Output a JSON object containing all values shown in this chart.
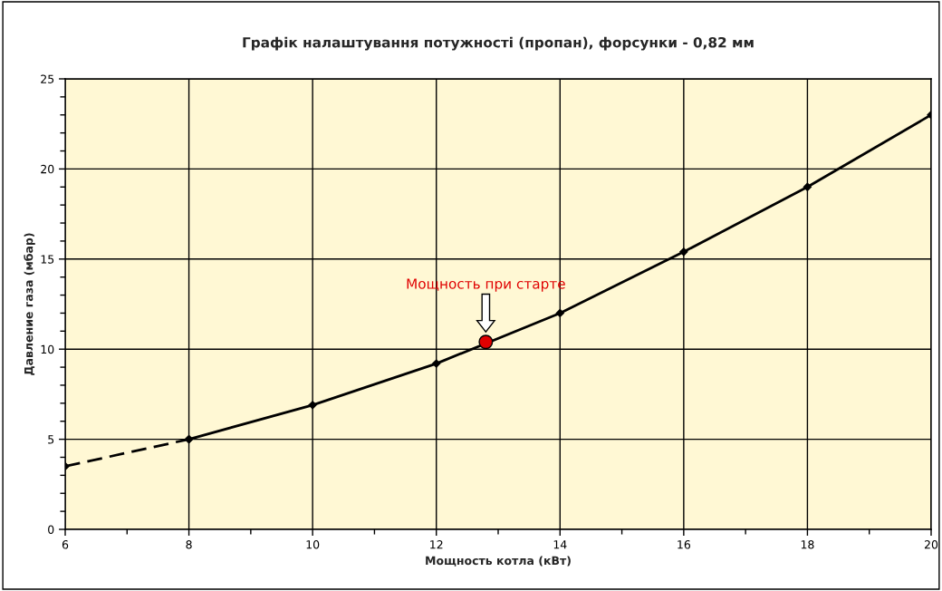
{
  "chart_data": {
    "type": "line",
    "title": "Графік налаштування потужності (пропан), форсунки - 0,82 мм",
    "xlabel": "Мощность котла (кВт)",
    "ylabel": "Давление газа (мбар)",
    "series": [
      {
        "color": "#000000",
        "x": [
          6,
          8
        ],
        "values": [
          3.5,
          5.0
        ],
        "line_style": "dashed",
        "marker": "diamond"
      },
      {
        "color": "#000000",
        "x": [
          8,
          10,
          12,
          14,
          16,
          18,
          20
        ],
        "values": [
          5.0,
          6.9,
          9.2,
          12.0,
          15.4,
          19.0,
          23.0
        ],
        "line_style": "solid",
        "marker": "diamond"
      },
      {
        "type": "scatter",
        "color": "#e00000",
        "x": [
          12.8
        ],
        "values": [
          10.4
        ],
        "marker": "circle"
      }
    ],
    "annotations": [
      "Мощность при старте"
    ],
    "xlim": [
      6,
      20
    ],
    "ylim": [
      0,
      25
    ],
    "xticks": [
      6,
      {
        "value": 7,
        "label": null
      },
      8,
      {
        "value": 9,
        "label": null
      },
      10,
      {
        "value": 11,
        "label": null
      },
      12,
      {
        "value": 13,
        "label": null
      },
      14,
      {
        "value": 15,
        "label": null
      },
      16,
      {
        "value": 17,
        "label": null
      },
      18,
      {
        "value": 19,
        "label": null
      },
      20
    ],
    "yticks": [
      0,
      {
        "value": 1,
        "label": null
      },
      {
        "value": 2,
        "label": null
      },
      {
        "value": 3,
        "label": null
      },
      {
        "value": 4,
        "label": null
      },
      5,
      {
        "value": 6,
        "label": null
      },
      {
        "value": 7,
        "label": null
      },
      {
        "value": 8,
        "label": null
      },
      {
        "value": 9,
        "label": null
      },
      10,
      {
        "value": 11,
        "label": null
      },
      {
        "value": 12,
        "label": null
      },
      {
        "value": 13,
        "label": null
      },
      {
        "value": 14,
        "label": null
      },
      15,
      {
        "value": 16,
        "label": null
      },
      {
        "value": 17,
        "label": null
      },
      {
        "value": 18,
        "label": null
      },
      {
        "value": 19,
        "label": null
      },
      20,
      {
        "value": 21,
        "label": null
      },
      {
        "value": 22,
        "label": null
      },
      {
        "value": 23,
        "label": null
      },
      {
        "value": 24,
        "label": null
      },
      25
    ],
    "grid": true,
    "legend": false
  }
}
